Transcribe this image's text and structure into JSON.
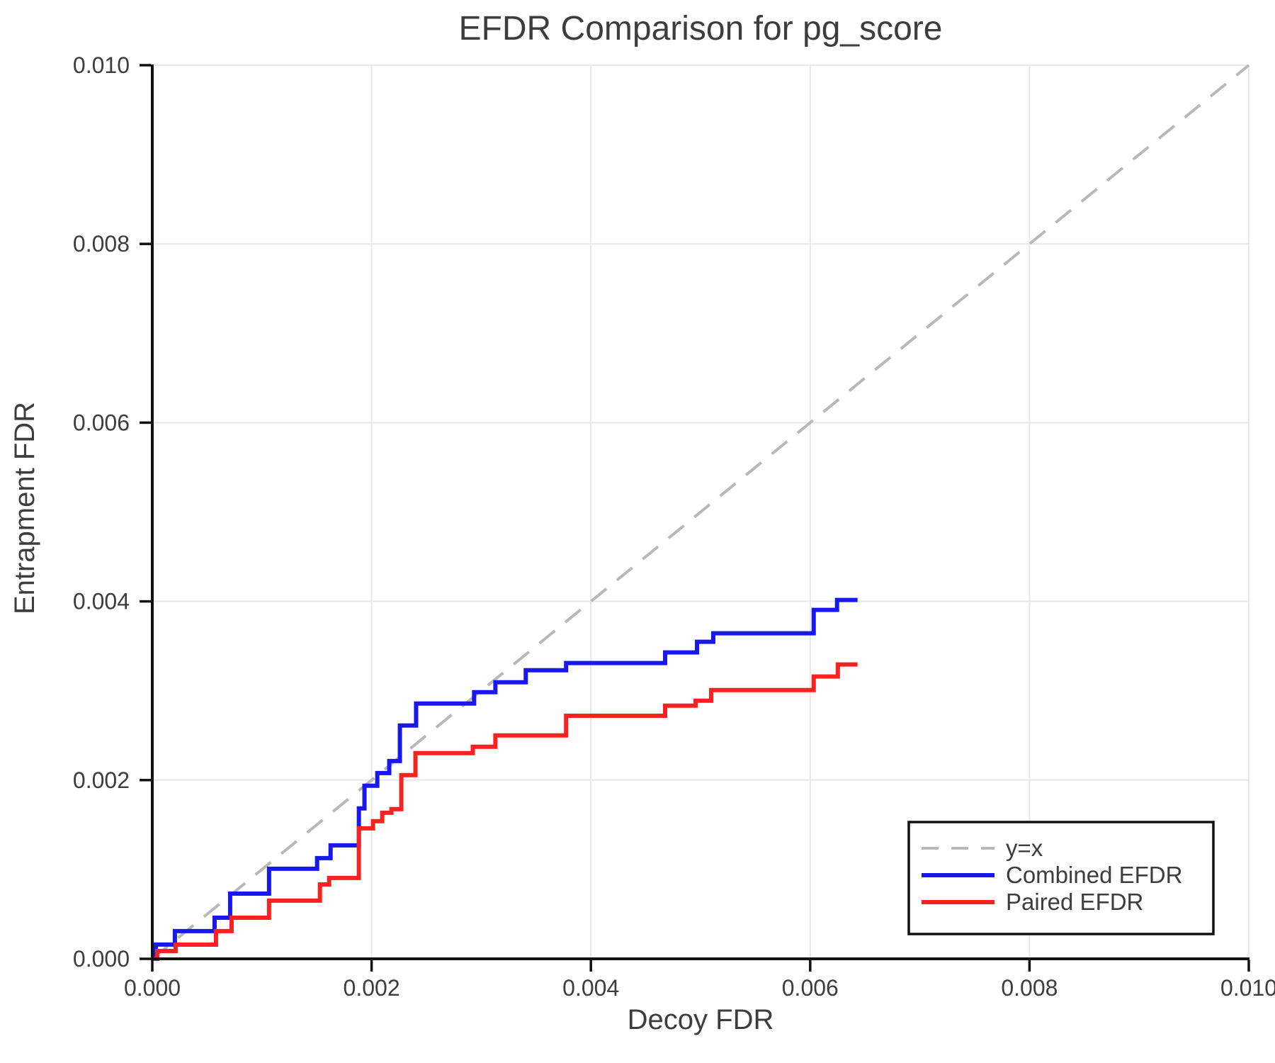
{
  "title": "EFDR Comparison for pg_score",
  "chart_data": {
    "type": "line",
    "title": "EFDR Comparison for pg_score",
    "xlabel": "Decoy FDR",
    "ylabel": "Entrapment FDR",
    "xlim": [
      0.0,
      0.01
    ],
    "ylim": [
      0.0,
      0.01
    ],
    "x_ticks": [
      0.0,
      0.002,
      0.004,
      0.006,
      0.008,
      0.01
    ],
    "y_ticks": [
      0.0,
      0.002,
      0.004,
      0.006,
      0.008,
      0.01
    ],
    "x_tick_labels": [
      "0.000",
      "0.002",
      "0.004",
      "0.006",
      "0.008",
      "0.010"
    ],
    "y_tick_labels": [
      "0.000",
      "0.002",
      "0.004",
      "0.006",
      "0.008",
      "0.010"
    ],
    "grid": true,
    "legend_position": "lower right",
    "colors": {
      "reference": "#b8b8b8",
      "combined": "#1717ee",
      "paired": "#fa2121",
      "grid": "#e8e8e8",
      "axis": "#111111",
      "text": "#3d3d3d"
    },
    "series": [
      {
        "name": "y=x",
        "draw": "dashed-line",
        "color": "#b8b8b8",
        "points": [
          [
            0.0,
            0.0
          ],
          [
            0.01,
            0.01
          ]
        ]
      },
      {
        "name": "Combined EFDR",
        "draw": "step",
        "color": "#1717ee",
        "points": [
          [
            0.0,
            0.0
          ],
          [
            3.2e-05,
            0.00016
          ],
          [
            0.000206,
            0.00031
          ],
          [
            0.000568,
            0.00046
          ],
          [
            0.00071,
            0.00073
          ],
          [
            0.001065,
            0.001008
          ],
          [
            0.001503,
            0.001127
          ],
          [
            0.001626,
            0.00127
          ],
          [
            0.001884,
            0.001683
          ],
          [
            0.001935,
            0.001937
          ],
          [
            0.002052,
            0.002079
          ],
          [
            0.002161,
            0.002214
          ],
          [
            0.002258,
            0.002611
          ],
          [
            0.002406,
            0.002857
          ],
          [
            0.002935,
            0.002984
          ],
          [
            0.003129,
            0.003095
          ],
          [
            0.003406,
            0.00323
          ],
          [
            0.003774,
            0.00331
          ],
          [
            0.004677,
            0.003429
          ],
          [
            0.004968,
            0.003548
          ],
          [
            0.005116,
            0.003643
          ],
          [
            0.006032,
            0.003905
          ],
          [
            0.006245,
            0.004016
          ],
          [
            0.006432,
            0.004016
          ]
        ]
      },
      {
        "name": "Paired EFDR",
        "draw": "step",
        "color": "#fa2121",
        "points": [
          [
            0.0,
            0.0
          ],
          [
            4.5e-05,
            8.7e-05
          ],
          [
            0.000213,
            0.000159
          ],
          [
            0.000581,
            0.00031
          ],
          [
            0.000723,
            0.00046
          ],
          [
            0.001065,
            0.000651
          ],
          [
            0.001529,
            0.000833
          ],
          [
            0.001613,
            0.000905
          ],
          [
            0.001884,
            0.00146
          ],
          [
            0.002013,
            0.00154
          ],
          [
            0.002097,
            0.001635
          ],
          [
            0.002181,
            0.001675
          ],
          [
            0.002271,
            0.002056
          ],
          [
            0.0024,
            0.002302
          ],
          [
            0.002923,
            0.002373
          ],
          [
            0.003129,
            0.0025
          ],
          [
            0.003774,
            0.00272
          ],
          [
            0.004677,
            0.002833
          ],
          [
            0.004955,
            0.002889
          ],
          [
            0.005097,
            0.003008
          ],
          [
            0.006032,
            0.003159
          ],
          [
            0.006252,
            0.003294
          ],
          [
            0.006432,
            0.003294
          ]
        ]
      }
    ],
    "legend": {
      "items": [
        {
          "label": "y=x"
        },
        {
          "label": "Combined EFDR"
        },
        {
          "label": "Paired EFDR"
        }
      ]
    }
  }
}
